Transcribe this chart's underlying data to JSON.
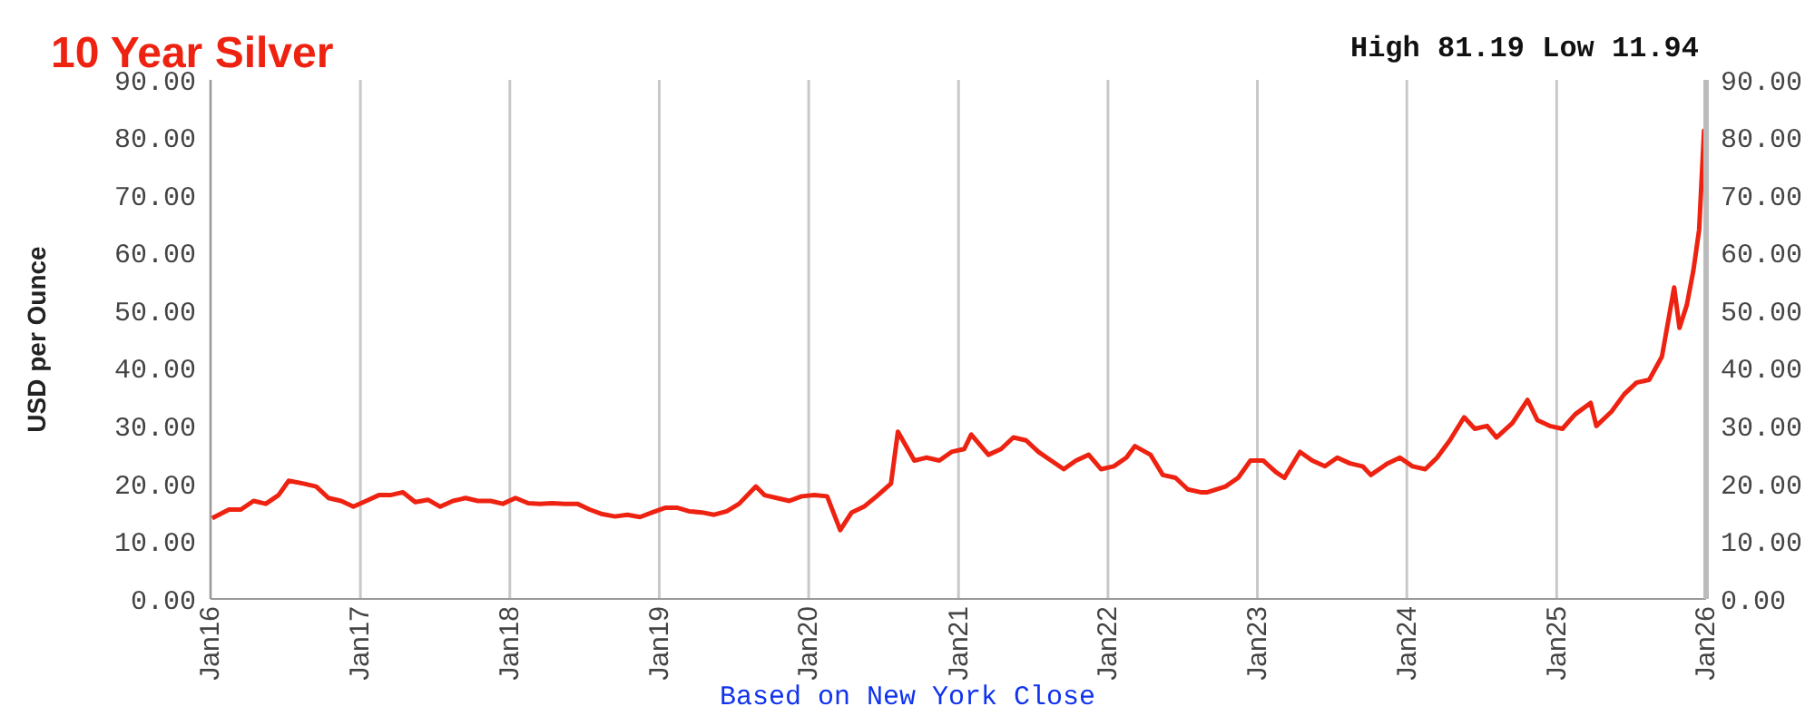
{
  "chart_data": {
    "type": "line",
    "title": "10 Year Silver",
    "ylabel": "USD per Ounce",
    "annotations": [
      "High 81.19 Low 11.94",
      "Based on New York Close"
    ],
    "x": [
      "2016-01-05",
      "2016-02-15",
      "2016-03-15",
      "2016-04-15",
      "2016-05-15",
      "2016-06-15",
      "2016-07-10",
      "2016-08-15",
      "2016-09-15",
      "2016-10-15",
      "2016-11-15",
      "2016-12-15",
      "2017-01-15",
      "2017-02-15",
      "2017-03-15",
      "2017-04-15",
      "2017-05-15",
      "2017-06-15",
      "2017-07-15",
      "2017-08-15",
      "2017-09-15",
      "2017-10-15",
      "2017-11-15",
      "2017-12-15",
      "2018-01-15",
      "2018-02-15",
      "2018-03-15",
      "2018-04-15",
      "2018-05-15",
      "2018-06-15",
      "2018-07-15",
      "2018-08-15",
      "2018-09-15",
      "2018-10-15",
      "2018-11-15",
      "2018-12-15",
      "2019-01-15",
      "2019-02-15",
      "2019-03-15",
      "2019-04-15",
      "2019-05-15",
      "2019-06-15",
      "2019-07-15",
      "2019-08-25",
      "2019-09-15",
      "2019-10-15",
      "2019-11-15",
      "2019-12-15",
      "2020-01-15",
      "2020-02-15",
      "2020-03-18",
      "2020-04-15",
      "2020-05-15",
      "2020-06-15",
      "2020-07-20",
      "2020-08-06",
      "2020-09-15",
      "2020-10-15",
      "2020-11-15",
      "2020-12-15",
      "2021-01-15",
      "2021-02-01",
      "2021-03-15",
      "2021-04-15",
      "2021-05-15",
      "2021-06-15",
      "2021-07-15",
      "2021-08-15",
      "2021-09-15",
      "2021-10-15",
      "2021-11-15",
      "2021-12-15",
      "2022-01-15",
      "2022-02-15",
      "2022-03-08",
      "2022-04-15",
      "2022-05-15",
      "2022-06-15",
      "2022-07-15",
      "2022-08-15",
      "2022-09-01",
      "2022-10-15",
      "2022-11-15",
      "2022-12-15",
      "2023-01-15",
      "2023-02-15",
      "2023-03-08",
      "2023-04-15",
      "2023-05-15",
      "2023-06-15",
      "2023-07-15",
      "2023-08-15",
      "2023-09-15",
      "2023-10-05",
      "2023-11-15",
      "2023-12-15",
      "2024-01-15",
      "2024-02-15",
      "2024-03-15",
      "2024-04-15",
      "2024-05-20",
      "2024-06-15",
      "2024-07-15",
      "2024-08-07",
      "2024-09-15",
      "2024-10-22",
      "2024-11-15",
      "2024-12-15",
      "2025-01-15",
      "2025-02-15",
      "2025-03-25",
      "2025-04-08",
      "2025-05-15",
      "2025-06-15",
      "2025-07-15",
      "2025-08-15",
      "2025-09-15",
      "2025-10-15",
      "2025-10-28",
      "2025-11-15",
      "2025-12-01",
      "2025-12-15",
      "2025-12-27",
      "2025-12-31"
    ],
    "values": [
      14,
      15.5,
      15.5,
      17,
      16.5,
      18,
      20.5,
      20,
      19.5,
      17.5,
      17,
      16,
      17,
      18,
      18,
      18.5,
      16.8,
      17.2,
      16,
      17,
      17.5,
      17,
      17,
      16.5,
      17.5,
      16.6,
      16.5,
      16.6,
      16.5,
      16.5,
      15.5,
      14.7,
      14.3,
      14.6,
      14.2,
      15,
      15.8,
      15.8,
      15.2,
      15,
      14.6,
      15.2,
      16.5,
      19.5,
      18,
      17.5,
      17,
      17.8,
      18,
      17.8,
      11.94,
      15,
      16,
      17.8,
      20,
      29,
      24,
      24.5,
      24,
      25.5,
      26,
      28.5,
      25,
      26,
      28,
      27.5,
      25.5,
      24,
      22.5,
      24,
      25,
      22.5,
      23,
      24.5,
      26.5,
      25,
      21.5,
      21,
      19,
      18.5,
      18.5,
      19.5,
      21,
      24,
      24,
      22,
      21,
      25.5,
      24,
      23,
      24.5,
      23.5,
      23,
      21.5,
      23.5,
      24.5,
      23,
      22.5,
      24.5,
      27.5,
      31.5,
      29.5,
      30,
      28,
      30.5,
      34.5,
      31,
      30,
      29.5,
      32,
      34,
      30,
      32.5,
      35.5,
      37.5,
      38,
      42,
      54,
      47,
      51,
      57,
      64,
      81.19,
      72
    ],
    "color": "#ee2211",
    "xlim": [
      "2016-01-01",
      "2026-01-01"
    ],
    "xticks": [
      {
        "value": "2016-01-01",
        "label": "Jan16"
      },
      {
        "value": "2017-01-01",
        "label": "Jan17"
      },
      {
        "value": "2018-01-01",
        "label": "Jan18"
      },
      {
        "value": "2019-01-01",
        "label": "Jan19"
      },
      {
        "value": "2020-01-01",
        "label": "Jan20"
      },
      {
        "value": "2021-01-01",
        "label": "Jan21"
      },
      {
        "value": "2022-01-01",
        "label": "Jan22"
      },
      {
        "value": "2023-01-01",
        "label": "Jan23"
      },
      {
        "value": "2024-01-01",
        "label": "Jan24"
      },
      {
        "value": "2025-01-01",
        "label": "Jan25"
      },
      {
        "value": "2026-01-01",
        "label": "Jan26"
      }
    ],
    "ylim": [
      0,
      90
    ],
    "yticks": [
      {
        "value": 0,
        "label": "0.00"
      },
      {
        "value": 10,
        "label": "10.00"
      },
      {
        "value": 20,
        "label": "20.00"
      },
      {
        "value": 30,
        "label": "30.00"
      },
      {
        "value": 40,
        "label": "40.00"
      },
      {
        "value": 50,
        "label": "50.00"
      },
      {
        "value": 60,
        "label": "60.00"
      },
      {
        "value": 70,
        "label": "70.00"
      },
      {
        "value": 80,
        "label": "80.00"
      },
      {
        "value": 90,
        "label": "90.00"
      }
    ],
    "y2lim": [
      0,
      90
    ],
    "y2ticks": [
      {
        "value": 0,
        "label": "0.00"
      },
      {
        "value": 10,
        "label": "10.00"
      },
      {
        "value": 20,
        "label": "20.00"
      },
      {
        "value": 30,
        "label": "30.00"
      },
      {
        "value": 40,
        "label": "40.00"
      },
      {
        "value": 50,
        "label": "50.00"
      },
      {
        "value": 60,
        "label": "60.00"
      },
      {
        "value": 70,
        "label": "70.00"
      },
      {
        "value": 80,
        "label": "80.00"
      },
      {
        "value": 90,
        "label": "90.00"
      }
    ],
    "grid": true
  }
}
